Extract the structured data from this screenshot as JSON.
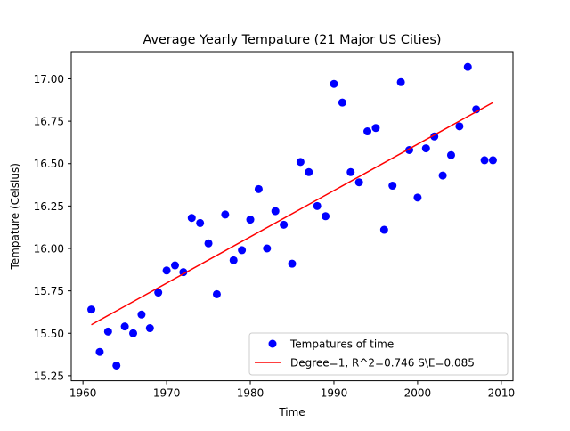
{
  "chart_data": {
    "type": "scatter",
    "title": "Average Yearly Tempature (21 Major US Cities)",
    "xlabel": "Time",
    "ylabel": "Tempature (Celsius)",
    "xlim": [
      1958.6,
      2011.4
    ],
    "ylim": [
      15.22,
      17.16
    ],
    "xticks": [
      1960,
      1970,
      1980,
      1990,
      2000,
      2010
    ],
    "yticks": [
      15.25,
      15.5,
      15.75,
      16.0,
      16.25,
      16.5,
      16.75,
      17.0
    ],
    "ytick_labels": [
      "15.25",
      "15.50",
      "15.75",
      "16.00",
      "16.25",
      "16.50",
      "16.75",
      "17.00"
    ],
    "grid": false,
    "legend_position": "lower-right",
    "series": [
      {
        "name": "Tempatures of time",
        "kind": "scatter",
        "color": "#0000ff",
        "x": [
          1961,
          1962,
          1963,
          1964,
          1965,
          1966,
          1967,
          1968,
          1969,
          1970,
          1971,
          1972,
          1973,
          1974,
          1975,
          1976,
          1977,
          1978,
          1979,
          1980,
          1981,
          1982,
          1983,
          1984,
          1985,
          1986,
          1987,
          1988,
          1989,
          1990,
          1991,
          1992,
          1993,
          1994,
          1995,
          1996,
          1997,
          1998,
          1999,
          2000,
          2001,
          2002,
          2003,
          2004,
          2005,
          2006,
          2007,
          2008,
          2009
        ],
        "y": [
          15.64,
          15.39,
          15.51,
          15.31,
          15.54,
          15.5,
          15.61,
          15.53,
          15.74,
          15.87,
          15.9,
          15.86,
          16.18,
          16.15,
          16.03,
          15.73,
          16.2,
          15.93,
          15.99,
          16.17,
          16.35,
          16.0,
          16.22,
          16.14,
          15.91,
          16.51,
          16.45,
          16.25,
          16.19,
          16.97,
          16.86,
          16.45,
          16.39,
          16.69,
          16.71,
          16.11,
          16.37,
          16.98,
          16.58,
          16.3,
          16.59,
          16.66,
          16.43,
          16.55,
          16.72,
          17.07,
          16.82,
          16.52,
          16.52
        ]
      },
      {
        "name": "Degree=1, R^2=0.746 S\\E=0.085",
        "kind": "line",
        "color": "#ff0000",
        "x": [
          1961,
          2009
        ],
        "y": [
          15.55,
          16.86
        ]
      }
    ]
  }
}
